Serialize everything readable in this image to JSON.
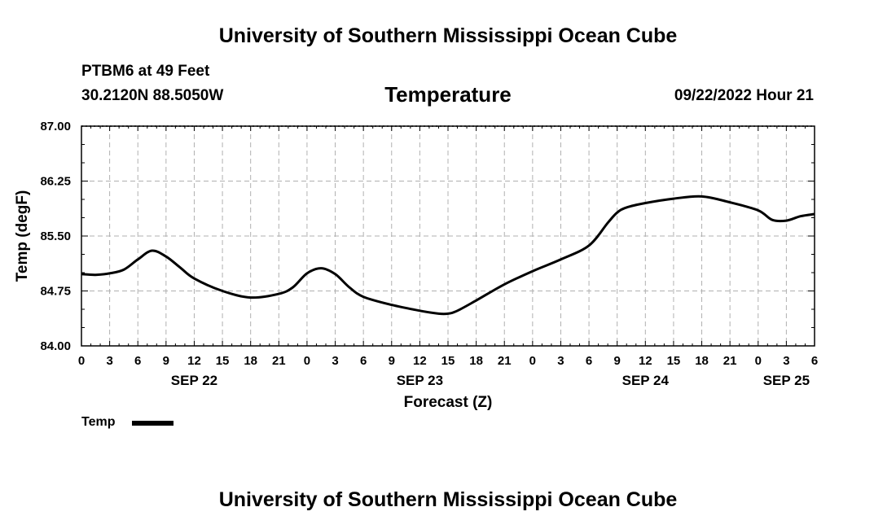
{
  "header": {
    "title": "University of Southern Mississippi Ocean Cube",
    "station": "PTBM6 at 49 Feet",
    "coordinates": "30.2120N  88.5050W",
    "date_hour": "09/22/2022 Hour 21"
  },
  "footer": {
    "title": "University of Southern Mississippi Ocean Cube"
  },
  "legend": {
    "label": "Temp"
  },
  "chart_data": {
    "type": "line",
    "title": "Temperature",
    "xlabel": "Forecast (Z)",
    "ylabel": "Temp (degF)",
    "ylim": [
      84.0,
      87.0
    ],
    "yticks": [
      "84.00",
      "84.75",
      "85.50",
      "86.25",
      "87.00"
    ],
    "x_unit": "hours since 09/22 00Z",
    "xlim": [
      0,
      78
    ],
    "xtick_labels": [
      "0",
      "3",
      "6",
      "9",
      "12",
      "15",
      "18",
      "21",
      "0",
      "3",
      "6",
      "9",
      "12",
      "15",
      "18",
      "21",
      "0",
      "3",
      "6",
      "9",
      "12",
      "15",
      "18",
      "21",
      "0",
      "3",
      "6"
    ],
    "date_labels": [
      {
        "hour": 12,
        "label": "SEP 22"
      },
      {
        "hour": 36,
        "label": "SEP 23"
      },
      {
        "hour": 60,
        "label": "SEP 24"
      },
      {
        "hour": 75,
        "label": "SEP 25"
      }
    ],
    "grid": true,
    "series": [
      {
        "name": "Temp",
        "color": "#000000",
        "x": [
          0,
          1.5,
          3,
          4.5,
          6,
          7.5,
          9,
          10.5,
          12,
          15,
          18,
          21,
          22.5,
          24,
          25.5,
          27,
          28.5,
          30,
          33,
          36,
          38,
          39,
          40,
          42,
          45,
          48,
          51,
          54,
          56,
          57,
          58,
          60,
          63,
          66,
          69,
          72,
          73.5,
          75,
          76.5,
          78
        ],
        "values": [
          84.98,
          84.97,
          84.99,
          85.04,
          85.18,
          85.3,
          85.22,
          85.07,
          84.92,
          84.75,
          84.66,
          84.71,
          84.8,
          84.99,
          85.06,
          84.98,
          84.8,
          84.67,
          84.56,
          84.48,
          84.44,
          84.44,
          84.48,
          84.62,
          84.84,
          85.02,
          85.18,
          85.37,
          85.68,
          85.82,
          85.89,
          85.95,
          86.01,
          86.04,
          85.96,
          85.85,
          85.72,
          85.71,
          85.77,
          85.8
        ]
      }
    ]
  }
}
